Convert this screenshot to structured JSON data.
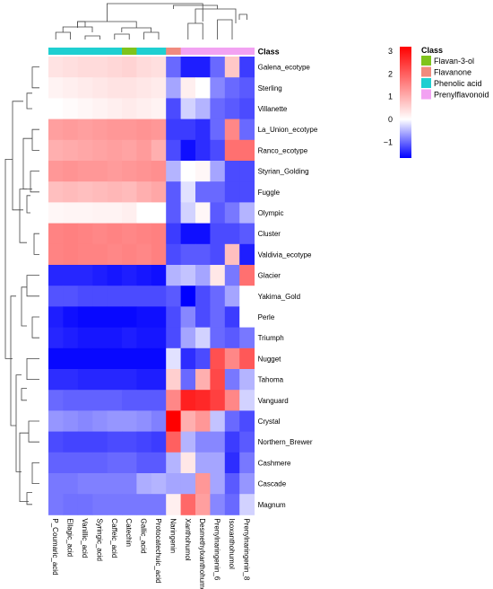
{
  "chart_data": {
    "type": "heatmap",
    "title": "",
    "rows": [
      "Galena_ecotype",
      "Sterling",
      "Villanette",
      "La_Union_ecotype",
      "Ranco_ecotype",
      "Styrian_Golding",
      "Fuggle",
      "Olympic",
      "Cluster",
      "Valdivia_ecotype",
      "Glacier",
      "Yakima_Gold",
      "Perle",
      "Triumph",
      "Nugget",
      "Tahoma",
      "Vanguard",
      "Crystal",
      "Northern_Brewer",
      "Cashmere",
      "Cascade",
      "Magnum"
    ],
    "columns": [
      "P_Coumaric_acid",
      "Ellagic_acid",
      "Vanillic_acid",
      "Syringic_acid",
      "Caffeic_acid",
      "Catechin",
      "Gallic_acid",
      "Protocatechuic_acid",
      "Naringenin",
      "Xanthohumol",
      "Desmethylxanthohumol",
      "Prenylnaringenin_6",
      "Isoxanthohumol",
      "Prenylnaringenin_8"
    ],
    "column_classes": [
      "Phenolic acid",
      "Phenolic acid",
      "Phenolic acid",
      "Phenolic acid",
      "Phenolic acid",
      "Flavan-3-ol",
      "Phenolic acid",
      "Phenolic acid",
      "Flavanone",
      "Prenylflavonoid",
      "Prenylflavonoid",
      "Prenylflavonoid",
      "Prenylflavonoid",
      "Prenylflavonoid"
    ],
    "class_header": "Class",
    "legend": {
      "title": "Class",
      "items": [
        {
          "label": "Flavan-3-ol",
          "color": "#7fc31c"
        },
        {
          "label": "Flavanone",
          "color": "#f08a7e"
        },
        {
          "label": "Phenolic acid",
          "color": "#1fcfd1"
        },
        {
          "label": "Prenylflavonoid",
          "color": "#f2a2f2"
        }
      ]
    },
    "color_scale": {
      "min": -1.7,
      "max": 3.2,
      "ticks": [
        3,
        2,
        1,
        0,
        -1
      ],
      "low_color": "#0000ff",
      "mid_color": "#ffffff",
      "high_color": "#ff0000"
    },
    "values": [
      [
        0.35,
        0.4,
        0.45,
        0.45,
        0.5,
        0.55,
        0.45,
        0.4,
        -1.0,
        -1.5,
        -1.5,
        -1.0,
        0.7,
        -1.3
      ],
      [
        0.15,
        0.2,
        0.25,
        0.3,
        0.35,
        0.35,
        0.3,
        0.25,
        -0.6,
        0.2,
        0.0,
        -0.8,
        -1.0,
        -1.1
      ],
      [
        0.0,
        0.05,
        0.1,
        0.15,
        0.2,
        0.25,
        0.2,
        0.15,
        -1.2,
        -0.3,
        -0.5,
        -1.0,
        -1.1,
        -1.2
      ],
      [
        1.2,
        1.25,
        1.2,
        1.25,
        1.3,
        1.3,
        1.35,
        1.3,
        -1.3,
        -1.3,
        -1.4,
        -1.0,
        1.5,
        -1.0
      ],
      [
        1.0,
        1.05,
        1.1,
        1.15,
        1.2,
        1.15,
        1.25,
        1.0,
        -1.2,
        -1.6,
        -1.4,
        -1.2,
        1.8,
        1.8
      ],
      [
        1.3,
        1.35,
        1.3,
        1.3,
        1.25,
        1.3,
        1.35,
        1.4,
        -0.5,
        0.0,
        0.1,
        -0.6,
        -1.2,
        -1.2
      ],
      [
        0.8,
        0.85,
        0.8,
        0.85,
        0.9,
        0.85,
        1.0,
        1.1,
        -1.1,
        -0.2,
        -1.0,
        -1.0,
        -1.2,
        -1.2
      ],
      [
        0.1,
        0.12,
        0.12,
        0.15,
        0.15,
        0.2,
        0.0,
        0.0,
        -1.1,
        -0.3,
        0.1,
        -1.1,
        -0.9,
        -0.5
      ],
      [
        1.55,
        1.6,
        1.55,
        1.5,
        1.55,
        1.5,
        1.55,
        1.6,
        -1.3,
        -1.6,
        -1.6,
        -1.2,
        -1.2,
        -1.1
      ],
      [
        1.55,
        1.6,
        1.55,
        1.55,
        1.5,
        1.55,
        1.5,
        1.6,
        -1.2,
        -1.1,
        -1.1,
        -1.2,
        0.8,
        -1.5
      ],
      [
        -1.45,
        -1.45,
        -1.45,
        -1.5,
        -1.55,
        -1.5,
        -1.55,
        -1.6,
        -0.5,
        -0.4,
        -0.6,
        0.3,
        -0.9,
        1.8
      ],
      [
        -1.15,
        -1.15,
        -1.2,
        -1.2,
        -1.2,
        -1.2,
        -1.2,
        -1.2,
        -1.1,
        -1.7,
        -1.2,
        -1.0,
        -0.6,
        0.0
      ],
      [
        -1.5,
        -1.6,
        -1.65,
        -1.65,
        -1.65,
        -1.65,
        -1.6,
        -1.6,
        -1.2,
        -0.8,
        -1.2,
        -1.0,
        -1.3,
        0.0
      ],
      [
        -1.45,
        -1.5,
        -1.55,
        -1.55,
        -1.55,
        -1.5,
        -1.55,
        -1.55,
        -1.2,
        -0.6,
        -0.3,
        -1.0,
        -1.1,
        -0.9
      ],
      [
        -1.65,
        -1.65,
        -1.65,
        -1.65,
        -1.65,
        -1.65,
        -1.65,
        -1.65,
        -0.2,
        -1.4,
        -1.2,
        2.2,
        1.5,
        2.1
      ],
      [
        -1.4,
        -1.4,
        -1.45,
        -1.45,
        -1.45,
        -1.45,
        -1.5,
        -1.5,
        0.6,
        -1.0,
        1.0,
        2.3,
        -0.9,
        -0.5
      ],
      [
        -1.0,
        -1.05,
        -1.05,
        -1.05,
        -1.05,
        -1.1,
        -1.1,
        -1.1,
        1.5,
        2.8,
        2.7,
        2.4,
        1.5,
        -0.3
      ],
      [
        -0.7,
        -0.75,
        -0.8,
        -0.75,
        -0.7,
        -0.7,
        -0.75,
        -0.85,
        3.2,
        1.0,
        1.3,
        -0.4,
        -1.0,
        -1.2
      ],
      [
        -1.2,
        -1.25,
        -1.25,
        -1.25,
        -1.2,
        -1.2,
        -1.25,
        -1.3,
        2.0,
        -0.5,
        -0.8,
        -0.8,
        -1.3,
        -1.1
      ],
      [
        -1.05,
        -1.05,
        -1.05,
        -1.05,
        -1.0,
        -1.0,
        -1.1,
        -1.1,
        -0.5,
        0.3,
        -0.6,
        -0.6,
        -1.4,
        -0.9
      ],
      [
        -0.9,
        -0.9,
        -0.85,
        -0.85,
        -0.85,
        -0.85,
        -0.55,
        -0.5,
        -0.6,
        -0.6,
        1.3,
        -0.6,
        -1.1,
        -0.7
      ],
      [
        -0.9,
        -0.95,
        -0.95,
        -0.9,
        -0.9,
        -0.9,
        -0.9,
        -0.9,
        0.2,
        1.9,
        1.2,
        -0.8,
        -1.0,
        -0.3
      ]
    ]
  }
}
